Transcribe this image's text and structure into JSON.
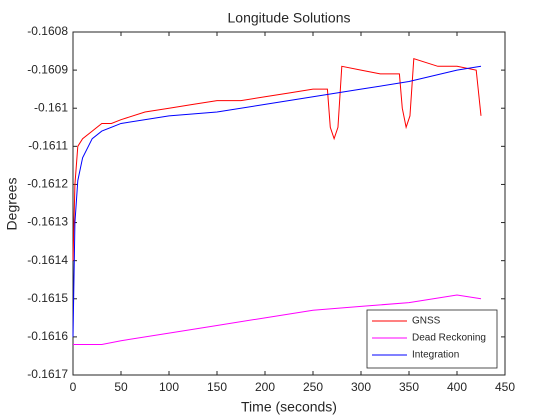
{
  "chart_data": {
    "type": "line",
    "title": "Longitude Solutions",
    "x_label": "Time (seconds)",
    "y_label": "Degrees",
    "xlim": [
      0,
      450
    ],
    "xticks": [
      0,
      50,
      100,
      150,
      200,
      250,
      300,
      350,
      400,
      450
    ],
    "ylim": [
      -0.1617,
      -0.1608
    ],
    "yticks": [
      -0.1617,
      -0.1616,
      -0.1615,
      -0.1614,
      -0.1613,
      -0.1612,
      -0.1611,
      -0.161,
      -0.1609,
      -0.1608
    ],
    "legend": "lower right",
    "series": [
      {
        "name": "GNSS",
        "color": "#ff0000",
        "x": [
          0,
          2,
          5,
          10,
          20,
          30,
          40,
          50,
          75,
          100,
          125,
          150,
          175,
          200,
          225,
          250,
          265,
          268,
          272,
          276,
          280,
          300,
          320,
          340,
          343,
          347,
          351,
          355,
          380,
          400,
          420,
          425
        ],
        "values": [
          -0.1614,
          -0.1612,
          -0.1611,
          -0.16108,
          -0.16106,
          -0.16104,
          -0.16104,
          -0.16103,
          -0.16101,
          -0.161,
          -0.16099,
          -0.16098,
          -0.16098,
          -0.16097,
          -0.16096,
          -0.16095,
          -0.16095,
          -0.16105,
          -0.16108,
          -0.16105,
          -0.16089,
          -0.1609,
          -0.16091,
          -0.16091,
          -0.161,
          -0.16105,
          -0.16102,
          -0.16087,
          -0.16089,
          -0.16089,
          -0.1609,
          -0.16102
        ]
      },
      {
        "name": "Dead Reckoning",
        "color": "#ff00ff",
        "x": [
          0,
          30,
          50,
          100,
          150,
          200,
          250,
          300,
          350,
          400,
          425
        ],
        "values": [
          -0.16162,
          -0.16162,
          -0.16161,
          -0.16159,
          -0.16157,
          -0.16155,
          -0.16153,
          -0.16152,
          -0.16151,
          -0.16149,
          -0.1615
        ]
      },
      {
        "name": "Integration",
        "color": "#0000ff",
        "x": [
          0,
          2,
          5,
          10,
          20,
          30,
          50,
          100,
          150,
          200,
          250,
          300,
          350,
          400,
          425
        ],
        "values": [
          -0.1616,
          -0.1613,
          -0.16119,
          -0.16113,
          -0.16108,
          -0.16106,
          -0.16104,
          -0.16102,
          -0.16101,
          -0.16099,
          -0.16097,
          -0.16095,
          -0.16093,
          -0.1609,
          -0.16089
        ]
      }
    ]
  }
}
